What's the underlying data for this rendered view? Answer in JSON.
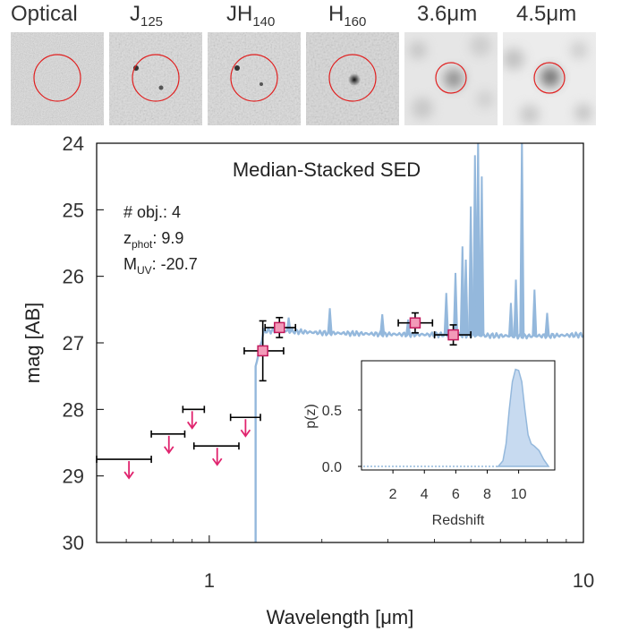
{
  "stamps": [
    {
      "label": "Optical",
      "sub": "",
      "suffix": ""
    },
    {
      "label": "J",
      "sub": "125",
      "suffix": ""
    },
    {
      "label": "JH",
      "sub": "140",
      "suffix": ""
    },
    {
      "label": "H",
      "sub": "160",
      "suffix": ""
    },
    {
      "label": "3.6",
      "sub": "",
      "suffix": "μm"
    },
    {
      "label": "4.5",
      "sub": "",
      "suffix": "μm"
    }
  ],
  "colors": {
    "spectrum": "#94b8dc",
    "detection_fill": "#f29ab8",
    "detection_edge": "#c2185b",
    "upper_limit_arrow": "#e0246e",
    "aperture_circle": "#e02020",
    "errorbar": "#000000",
    "pz_fill": "#c7daf0",
    "pz_line": "#94b8dc"
  },
  "chart_data": [
    {
      "type": "scatter",
      "title": "Median-Stacked SED",
      "xlabel": "Wavelength [μm]",
      "ylabel": "mag [AB]",
      "xscale": "log",
      "xlim": [
        0.5,
        10
      ],
      "ylim": [
        30,
        24
      ],
      "x_ticks": [
        {
          "value": 1,
          "label": "1"
        },
        {
          "value": 10,
          "label": "10"
        }
      ],
      "y_ticks": [
        24,
        25,
        26,
        27,
        28,
        29,
        30
      ],
      "annotations": {
        "nobj_label": "# obj.: 4",
        "z_label": "z",
        "z_sub": "phot",
        "z_value": ": 9.9",
        "muv_label": "M",
        "muv_sub": "UV",
        "muv_value": ": -20.7"
      },
      "detections": [
        {
          "x": 1.39,
          "x_lo": 1.24,
          "x_hi": 1.58,
          "y": 27.12,
          "y_err": 0.45
        },
        {
          "x": 1.54,
          "x_lo": 1.41,
          "x_hi": 1.7,
          "y": 26.77,
          "y_err": 0.15
        },
        {
          "x": 3.55,
          "x_lo": 3.2,
          "x_hi": 3.95,
          "y": 26.7,
          "y_err": 0.15
        },
        {
          "x": 4.49,
          "x_lo": 4.0,
          "x_hi": 5.0,
          "y": 26.88,
          "y_err": 0.15
        }
      ],
      "upper_limits": [
        {
          "x": 0.61,
          "x_lo": 0.5,
          "x_hi": 0.7,
          "y": 28.75
        },
        {
          "x": 0.78,
          "x_lo": 0.7,
          "x_hi": 0.86,
          "y": 28.37
        },
        {
          "x": 0.9,
          "x_lo": 0.85,
          "x_hi": 0.97,
          "y": 28.0
        },
        {
          "x": 1.05,
          "x_lo": 0.91,
          "x_hi": 1.2,
          "y": 28.55
        },
        {
          "x": 1.25,
          "x_lo": 1.14,
          "x_hi": 1.37,
          "y": 28.12
        }
      ],
      "spectrum": {
        "break_x": 1.33,
        "continuum": [
          [
            1.33,
            27.35
          ],
          [
            1.4,
            26.82
          ],
          [
            1.6,
            26.82
          ],
          [
            2.0,
            26.85
          ],
          [
            3.0,
            26.87
          ],
          [
            4.5,
            26.88
          ],
          [
            7.0,
            26.9
          ],
          [
            10.0,
            26.88
          ]
        ],
        "emission_lines": [
          {
            "x": 1.63,
            "y": 26.62
          },
          {
            "x": 2.1,
            "y": 26.48
          },
          {
            "x": 2.9,
            "y": 26.57
          },
          {
            "x": 3.4,
            "y": 26.65
          },
          {
            "x": 4.3,
            "y": 26.25
          },
          {
            "x": 4.55,
            "y": 25.95
          },
          {
            "x": 4.75,
            "y": 25.55
          },
          {
            "x": 4.85,
            "y": 25.75
          },
          {
            "x": 5.0,
            "y": 24.95
          },
          {
            "x": 5.13,
            "y": 24.18
          },
          {
            "x": 5.23,
            "y": 24.0
          },
          {
            "x": 5.35,
            "y": 24.5
          },
          {
            "x": 6.4,
            "y": 26.4
          },
          {
            "x": 6.6,
            "y": 26.05
          },
          {
            "x": 6.85,
            "y": 24.0
          },
          {
            "x": 7.4,
            "y": 26.2
          },
          {
            "x": 8.0,
            "y": 26.55
          }
        ]
      }
    },
    {
      "type": "area",
      "title": "",
      "xlabel": "Redshift",
      "ylabel": "p(z)",
      "xlim": [
        0,
        12.3
      ],
      "ylim": [
        0,
        0.92
      ],
      "x_ticks": [
        2,
        4,
        6,
        8,
        10
      ],
      "y_ticks": [
        {
          "value": 0.0,
          "label": "0.0"
        },
        {
          "value": 0.5,
          "label": "0.5"
        }
      ],
      "x": [
        8.7,
        9.0,
        9.2,
        9.4,
        9.6,
        9.8,
        10.0,
        10.2,
        10.4,
        10.6,
        10.8,
        11.0,
        11.3,
        11.6,
        11.9
      ],
      "y": [
        0.0,
        0.05,
        0.2,
        0.5,
        0.75,
        0.86,
        0.85,
        0.75,
        0.5,
        0.28,
        0.2,
        0.18,
        0.14,
        0.06,
        0.0
      ]
    }
  ]
}
